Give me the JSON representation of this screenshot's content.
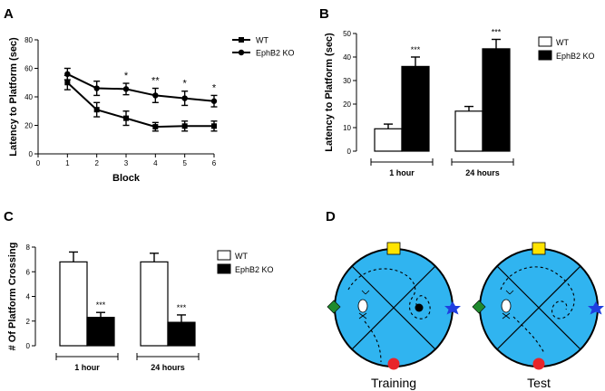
{
  "chart_data": [
    {
      "panel": "A",
      "type": "line",
      "ylabel": "Latency to Platform (sec)",
      "xlabel": "Block",
      "xlim": [
        0,
        6
      ],
      "ylim": [
        0,
        80
      ],
      "xticks": [
        "0",
        "1",
        "2",
        "3",
        "4",
        "5",
        "6"
      ],
      "yticks": [
        "0",
        "20",
        "40",
        "60",
        "80"
      ],
      "x": [
        1,
        2,
        3,
        4,
        5,
        6
      ],
      "series": [
        {
          "name": "WT",
          "marker": "square",
          "values": [
            50,
            31,
            25,
            19,
            19.5,
            19.5
          ],
          "errors": [
            5,
            5,
            5,
            3,
            3.5,
            3.5
          ]
        },
        {
          "name": "EphB2 KO",
          "marker": "circle",
          "values": [
            56,
            46,
            45.5,
            41,
            39,
            37
          ],
          "errors": [
            4,
            5,
            4,
            5,
            5,
            4
          ]
        }
      ],
      "annotations": [
        {
          "x": 3,
          "text": "*"
        },
        {
          "x": 4,
          "text": "**"
        },
        {
          "x": 5,
          "text": "*"
        },
        {
          "x": 6,
          "text": "*"
        }
      ],
      "legend_position": "top-right"
    },
    {
      "panel": "B",
      "type": "bar",
      "ylabel": "Latency to Platform (sec)",
      "ylim": [
        0,
        50
      ],
      "yticks": [
        "0",
        "10",
        "20",
        "30",
        "40",
        "50"
      ],
      "categories": [
        "1 hour",
        "24 hours"
      ],
      "series": [
        {
          "name": "WT",
          "fill": "#ffffff",
          "values": [
            9.5,
            17
          ],
          "errors": [
            2,
            2
          ]
        },
        {
          "name": "EphB2 KO",
          "fill": "#000000",
          "values": [
            36,
            43.5
          ],
          "errors": [
            4,
            4
          ]
        }
      ],
      "annotations": [
        {
          "category": "1 hour",
          "text": "***"
        },
        {
          "category": "24 hours",
          "text": "***"
        }
      ],
      "legend_position": "top-right"
    },
    {
      "panel": "C",
      "type": "bar",
      "ylabel": "# Of Platform Crossing",
      "ylim": [
        0,
        8
      ],
      "yticks": [
        "0",
        "2",
        "4",
        "6",
        "8"
      ],
      "categories": [
        "1 hour",
        "24 hours"
      ],
      "series": [
        {
          "name": "WT",
          "fill": "#ffffff",
          "values": [
            6.8,
            6.8
          ],
          "errors": [
            0.8,
            0.7
          ]
        },
        {
          "name": "EphB2 KO",
          "fill": "#000000",
          "values": [
            2.3,
            1.9
          ],
          "errors": [
            0.4,
            0.6
          ]
        }
      ],
      "annotations": [
        {
          "category": "1 hour",
          "text": "***"
        },
        {
          "category": "24 hours",
          "text": "***"
        }
      ],
      "legend_position": "center-right"
    }
  ],
  "panels": {
    "a": {
      "letter": "A"
    },
    "b": {
      "letter": "B"
    },
    "c": {
      "letter": "C"
    },
    "d": {
      "letter": "D",
      "pools": [
        {
          "label": "Training"
        },
        {
          "label": "Test"
        }
      ]
    }
  },
  "colors": {
    "pool_fill": "#30b4f0",
    "cue_top": "#ffe400",
    "cue_left": "#1f8a2e",
    "cue_right": "#1f3fe0",
    "cue_bottom": "#e8242a"
  }
}
